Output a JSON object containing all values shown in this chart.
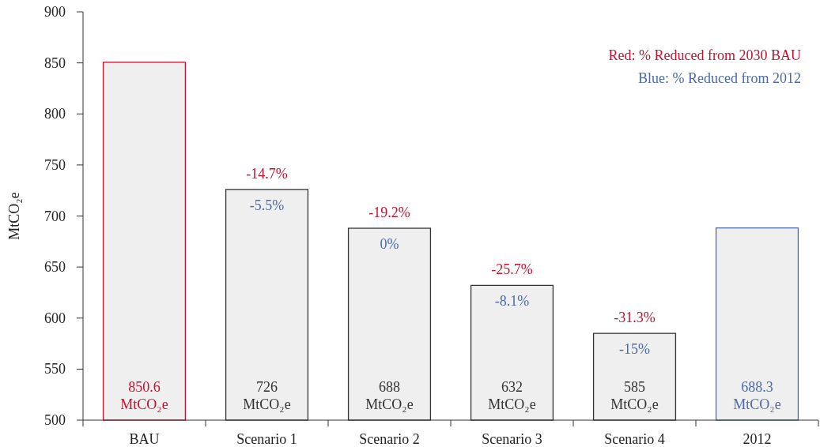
{
  "chart_data": {
    "type": "bar",
    "ylabel": "MtCO₂e",
    "categories": [
      "BAU",
      "Scenario 1",
      "Scenario 2",
      "Scenario 3",
      "Scenario 4",
      "2012"
    ],
    "values": [
      850.6,
      726,
      688,
      632,
      585,
      688.3
    ],
    "colors": [
      "#c8102e",
      "#333333",
      "#333333",
      "#333333",
      "#333333",
      "#4a6aa8"
    ],
    "value_labels": [
      "850.6 MtCO₂e",
      "726 MtCO₂e",
      "688 MtCO₂e",
      "632 MtCO₂e",
      "585 MtCO₂e",
      "688.3 MtCO₂e"
    ],
    "ylim": [
      500,
      900
    ],
    "yticks": [
      500,
      550,
      600,
      650,
      700,
      750,
      800,
      850,
      900
    ],
    "annotations": [
      "Red: % Reduced from 2030 BAU",
      "Blue: % Reduced from 2012",
      {
        "text": "-14.7%",
        "x": "Scenario 1",
        "y": 726
      },
      {
        "text": "-19.2%",
        "x": "Scenario 2",
        "y": 688
      },
      {
        "text": "-25.7%",
        "x": "Scenario 3",
        "y": 632
      },
      {
        "text": "-31.3%",
        "x": "Scenario 4",
        "y": 585
      },
      {
        "text": "-5.5%",
        "x": "Scenario 1",
        "y": 726
      },
      {
        "text": "0%",
        "x": "Scenario 2",
        "y": 688
      },
      {
        "text": "-8.1%",
        "x": "Scenario 3",
        "y": 632
      },
      {
        "text": "-15%",
        "x": "Scenario 4",
        "y": 585
      }
    ]
  }
}
